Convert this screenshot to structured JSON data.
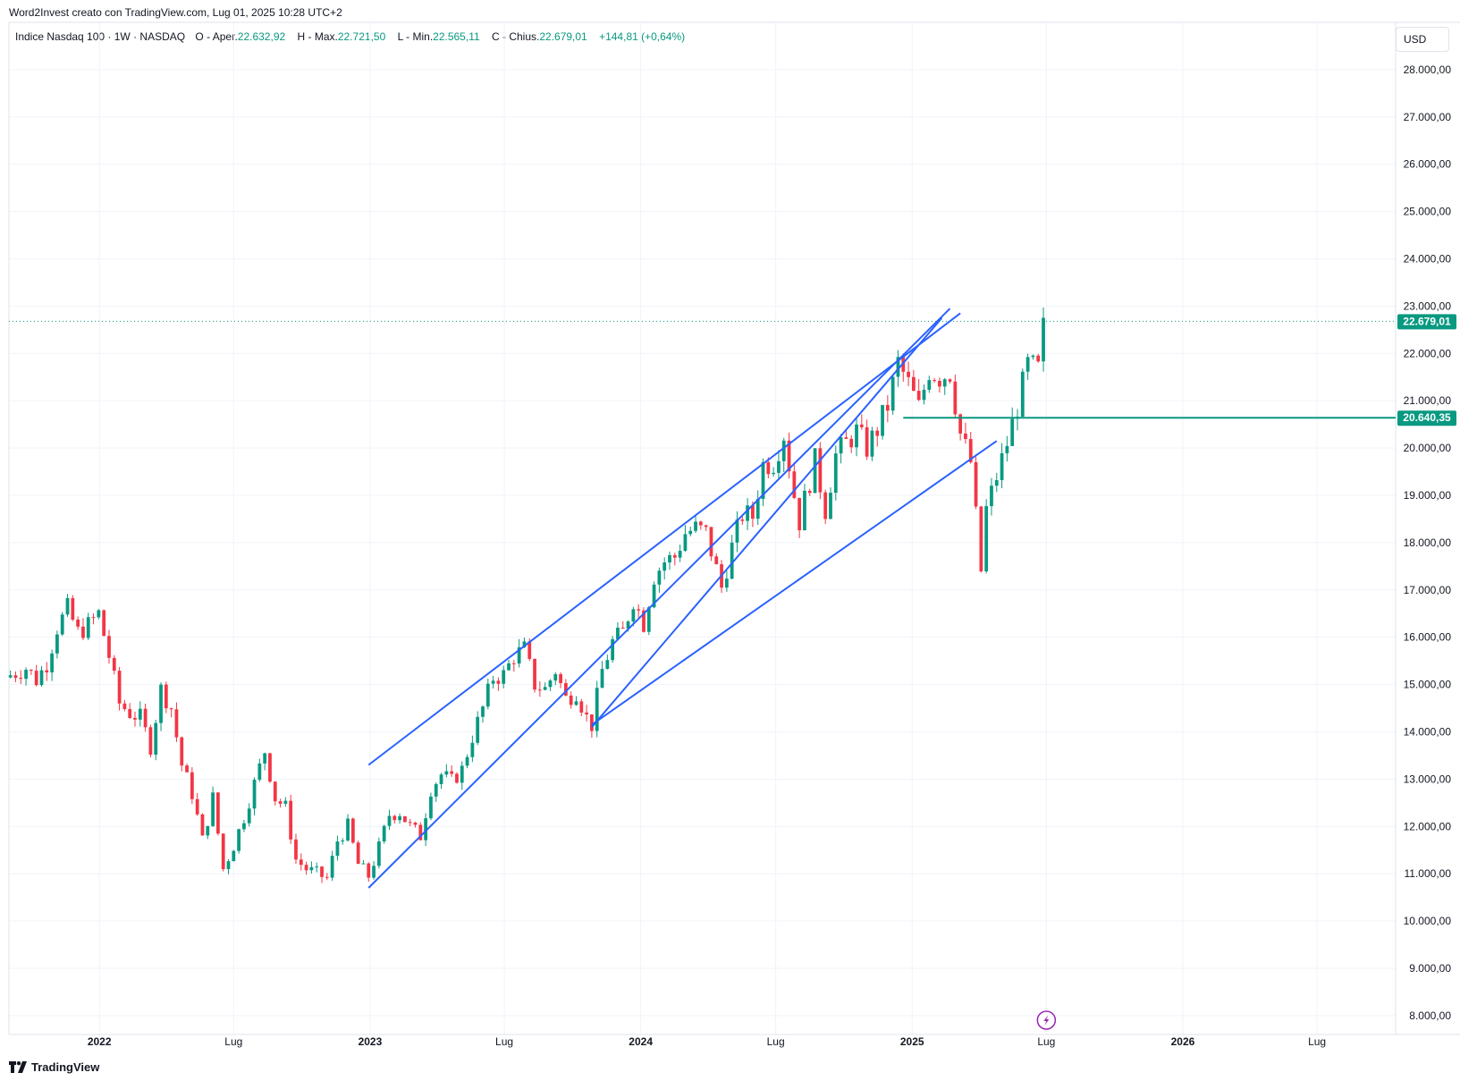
{
  "attribution": "Word2Invest creato con TradingView.com, Lug 01, 2025 10:28 UTC+2",
  "legend": {
    "symbol": "Indice Nasdaq 100 · 1W · NASDAQ",
    "open_label": "O - Aper.",
    "open": "22.632,92",
    "high_label": "H - Max.",
    "high": "22.721,50",
    "low_label": "L - Min.",
    "low": "22.565,11",
    "close_label": "C - Chius.",
    "close": "22.679,01",
    "change": "+144,81 (+0,64%)"
  },
  "currency_button": "USD",
  "brand": "TradingView",
  "colors": {
    "up": "#089981",
    "down": "#f23645",
    "trendline": "#2962ff",
    "level": "#089981",
    "grid": "#f0f3fa",
    "text": "#131722",
    "alert": "#9c27b0"
  },
  "icons": {
    "alert": "lightning-icon",
    "brand": "tradingview-logo-icon"
  },
  "chart_data": {
    "type": "candlestick",
    "timeframe": "1W",
    "x_axis_labels": [
      "2022",
      "Lug",
      "2023",
      "Lug",
      "2024",
      "Lug",
      "2025",
      "Lug",
      "2026",
      "Lug"
    ],
    "y_axis_ticks": [
      "28.000,00",
      "27.000,00",
      "26.000,00",
      "25.000,00",
      "24.000,00",
      "23.000,00",
      "22.000,00",
      "21.000,00",
      "20.000,00",
      "19.000,00",
      "18.000,00",
      "17.000,00",
      "16.000,00",
      "15.000,00",
      "14.000,00",
      "13.000,00",
      "12.000,00",
      "11.000,00",
      "10.000,00",
      "9.000,00",
      "8.000,00"
    ],
    "ylim": [
      7600,
      29000
    ],
    "xlim": [
      "2021-09-01",
      "2026-10-15"
    ],
    "last_price_label": "22.679,01",
    "last_price": 22679.01,
    "level_label": "20.640,35",
    "level": 20640.35,
    "level_start": "2024-12-20",
    "grid": true,
    "close_path": [
      [
        "2021-09-03",
        15200
      ],
      [
        "2021-09-24",
        15350
      ],
      [
        "2021-10-08",
        15100
      ],
      [
        "2021-10-22",
        15450
      ],
      [
        "2021-11-05",
        16200
      ],
      [
        "2021-11-19",
        16600
      ],
      [
        "2021-12-03",
        16100
      ],
      [
        "2021-12-17",
        16250
      ],
      [
        "2021-12-31",
        16500
      ],
      [
        "2022-01-14",
        15600
      ],
      [
        "2022-01-28",
        14600
      ],
      [
        "2022-02-11",
        14400
      ],
      [
        "2022-02-25",
        14300
      ],
      [
        "2022-03-11",
        13700
      ],
      [
        "2022-03-25",
        14900
      ],
      [
        "2022-04-08",
        14500
      ],
      [
        "2022-04-22",
        13300
      ],
      [
        "2022-05-06",
        12700
      ],
      [
        "2022-05-20",
        11700
      ],
      [
        "2022-06-03",
        12600
      ],
      [
        "2022-06-17",
        11100
      ],
      [
        "2022-07-01",
        11600
      ],
      [
        "2022-07-15",
        12200
      ],
      [
        "2022-07-29",
        12900
      ],
      [
        "2022-08-12",
        13600
      ],
      [
        "2022-08-26",
        12600
      ],
      [
        "2022-09-09",
        12400
      ],
      [
        "2022-09-23",
        11300
      ],
      [
        "2022-10-07",
        11100
      ],
      [
        "2022-10-21",
        11000
      ],
      [
        "2022-11-04",
        10900
      ],
      [
        "2022-11-18",
        11700
      ],
      [
        "2022-12-02",
        12000
      ],
      [
        "2022-12-16",
        11200
      ],
      [
        "2022-12-30",
        10950
      ],
      [
        "2023-01-13",
        11550
      ],
      [
        "2023-01-27",
        12250
      ],
      [
        "2023-02-10",
        12300
      ],
      [
        "2023-02-24",
        12000
      ],
      [
        "2023-03-10",
        11800
      ],
      [
        "2023-03-24",
        12800
      ],
      [
        "2023-04-07",
        13100
      ],
      [
        "2023-04-21",
        12950
      ],
      [
        "2023-05-05",
        13200
      ],
      [
        "2023-05-19",
        13900
      ],
      [
        "2023-06-02",
        14500
      ],
      [
        "2023-06-16",
        15150
      ],
      [
        "2023-06-30",
        15200
      ],
      [
        "2023-07-14",
        15600
      ],
      [
        "2023-07-28",
        15750
      ],
      [
        "2023-08-11",
        15000
      ],
      [
        "2023-08-25",
        14900
      ],
      [
        "2023-09-08",
        15300
      ],
      [
        "2023-09-22",
        14700
      ],
      [
        "2023-10-06",
        14850
      ],
      [
        "2023-10-20",
        14300
      ],
      [
        "2023-10-27",
        14150
      ],
      [
        "2023-11-10",
        15300
      ],
      [
        "2023-11-24",
        15900
      ],
      [
        "2023-12-08",
        16100
      ],
      [
        "2023-12-22",
        16800
      ],
      [
        "2024-01-05",
        16300
      ],
      [
        "2024-01-19",
        17300
      ],
      [
        "2024-02-02",
        17600
      ],
      [
        "2024-02-16",
        17700
      ],
      [
        "2024-03-01",
        18200
      ],
      [
        "2024-03-15",
        18300
      ],
      [
        "2024-03-29",
        18200
      ],
      [
        "2024-04-19",
        17050
      ],
      [
        "2024-05-03",
        17900
      ],
      [
        "2024-05-17",
        18600
      ],
      [
        "2024-05-31",
        18550
      ],
      [
        "2024-06-14",
        19650
      ],
      [
        "2024-06-28",
        19700
      ],
      [
        "2024-07-12",
        20300
      ],
      [
        "2024-07-26",
        19000
      ],
      [
        "2024-08-02",
        18450
      ],
      [
        "2024-08-09",
        18900
      ],
      [
        "2024-08-23",
        19720
      ],
      [
        "2024-09-06",
        18700
      ],
      [
        "2024-09-20",
        19850
      ],
      [
        "2024-10-04",
        20100
      ],
      [
        "2024-10-18",
        20350
      ],
      [
        "2024-11-01",
        20000
      ],
      [
        "2024-11-15",
        20400
      ],
      [
        "2024-11-29",
        20900
      ],
      [
        "2024-12-13",
        21800
      ],
      [
        "2024-12-27",
        21350
      ],
      [
        "2025-01-10",
        20850
      ],
      [
        "2025-01-24",
        21650
      ],
      [
        "2025-02-07",
        21500
      ],
      [
        "2025-02-21",
        21600
      ],
      [
        "2025-03-07",
        20300
      ],
      [
        "2025-03-21",
        19700
      ],
      [
        "2025-04-04",
        17400
      ],
      [
        "2025-04-11",
        18700
      ],
      [
        "2025-04-25",
        19400
      ],
      [
        "2025-05-09",
        20100
      ],
      [
        "2025-05-23",
        20900
      ],
      [
        "2025-06-06",
        21750
      ],
      [
        "2025-06-20",
        21650
      ],
      [
        "2025-06-27",
        22535
      ],
      [
        "2025-06-30",
        22679
      ]
    ],
    "trendlines": [
      {
        "from": [
          "2022-12-30",
          10700
        ],
        "to": [
          "2025-02-21",
          22950
        ]
      },
      {
        "from": [
          "2022-12-30",
          13300
        ],
        "to": [
          "2025-03-07",
          22850
        ]
      },
      {
        "from": [
          "2023-10-27",
          14100
        ],
        "to": [
          "2025-02-10",
          22750
        ]
      },
      {
        "from": [
          "2023-10-27",
          14150
        ],
        "to": [
          "2025-04-25",
          20150
        ]
      }
    ]
  }
}
